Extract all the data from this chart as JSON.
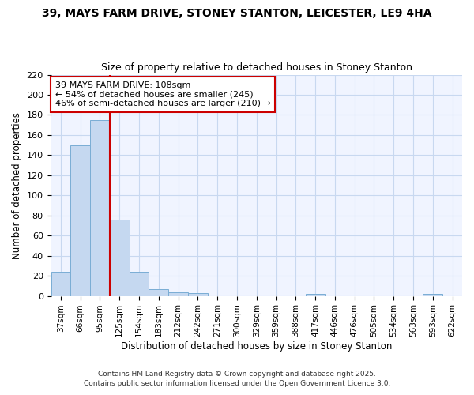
{
  "title1": "39, MAYS FARM DRIVE, STONEY STANTON, LEICESTER, LE9 4HA",
  "title2": "Size of property relative to detached houses in Stoney Stanton",
  "xlabel": "Distribution of detached houses by size in Stoney Stanton",
  "ylabel": "Number of detached properties",
  "categories": [
    "37sqm",
    "66sqm",
    "95sqm",
    "125sqm",
    "154sqm",
    "183sqm",
    "212sqm",
    "242sqm",
    "271sqm",
    "300sqm",
    "329sqm",
    "359sqm",
    "388sqm",
    "417sqm",
    "446sqm",
    "476sqm",
    "505sqm",
    "534sqm",
    "563sqm",
    "593sqm",
    "622sqm"
  ],
  "values": [
    24,
    150,
    175,
    76,
    24,
    7,
    4,
    3,
    0,
    0,
    0,
    0,
    0,
    2,
    0,
    0,
    0,
    0,
    0,
    2,
    0
  ],
  "bar_color": "#c5d8f0",
  "bar_edge_color": "#7aadd4",
  "annotation_line1": "39 MAYS FARM DRIVE: 108sqm",
  "annotation_line2": "← 54% of detached houses are smaller (245)",
  "annotation_line3": "46% of semi-detached houses are larger (210) →",
  "annotation_box_color": "#ffffff",
  "annotation_border_color": "#cc0000",
  "red_line_color": "#cc0000",
  "ylim": [
    0,
    220
  ],
  "yticks": [
    0,
    20,
    40,
    60,
    80,
    100,
    120,
    140,
    160,
    180,
    200,
    220
  ],
  "footer1": "Contains HM Land Registry data © Crown copyright and database right 2025.",
  "footer2": "Contains public sector information licensed under the Open Government Licence 3.0.",
  "background_color": "#ffffff",
  "plot_bg_color": "#f0f4ff",
  "grid_color": "#c8d8f0"
}
